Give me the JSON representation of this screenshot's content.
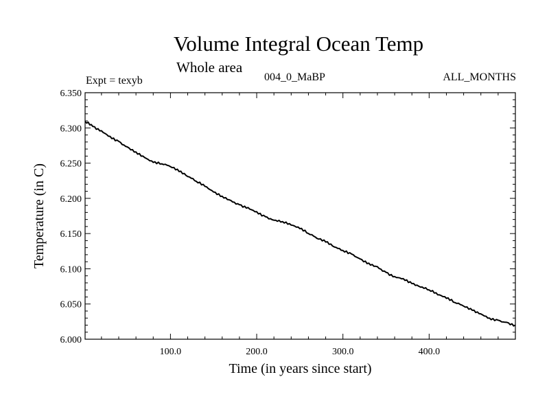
{
  "header": {
    "title": "Volume Integral Ocean Temp",
    "subtitle": "Whole area",
    "left_label": "Expt = texyb",
    "center_label": "004_0_MaBP",
    "right_label": "ALL_MONTHS"
  },
  "chart_data": {
    "type": "line",
    "xlabel": "Time (in years since start)",
    "ylabel": "Temperature (in C)",
    "xlim": [
      1,
      500
    ],
    "ylim": [
      6.0,
      6.35
    ],
    "x_ticks": [
      100,
      200,
      300,
      400
    ],
    "x_tick_labels": [
      "100.0",
      "200.0",
      "300.0",
      "400.0"
    ],
    "y_ticks": [
      6.0,
      6.05,
      6.1,
      6.15,
      6.2,
      6.25,
      6.3,
      6.35
    ],
    "y_tick_labels": [
      "6.000",
      "6.050",
      "6.100",
      "6.150",
      "6.200",
      "6.250",
      "6.300",
      "6.350"
    ],
    "grid": false,
    "series": [
      {
        "x": [
          1,
          10,
          20,
          30,
          40,
          50,
          60,
          70,
          80,
          90,
          100,
          110,
          120,
          130,
          140,
          150,
          160,
          170,
          180,
          190,
          200,
          210,
          220,
          230,
          240,
          250,
          260,
          270,
          280,
          290,
          300,
          310,
          320,
          330,
          340,
          350,
          360,
          370,
          380,
          390,
          400,
          410,
          420,
          430,
          440,
          450,
          460,
          470,
          480,
          490,
          500
        ],
        "values": [
          6.309,
          6.302,
          6.296,
          6.288,
          6.281,
          6.273,
          6.266,
          6.258,
          6.251,
          6.249,
          6.245,
          6.238,
          6.231,
          6.224,
          6.217,
          6.209,
          6.203,
          6.197,
          6.191,
          6.187,
          6.181,
          6.174,
          6.169,
          6.167,
          6.162,
          6.157,
          6.15,
          6.143,
          6.138,
          6.131,
          6.126,
          6.121,
          6.114,
          6.108,
          6.103,
          6.095,
          6.089,
          6.086,
          6.079,
          6.074,
          6.07,
          6.063,
          6.058,
          6.052,
          6.047,
          6.041,
          6.036,
          6.03,
          6.027,
          6.024,
          6.02
        ]
      }
    ]
  }
}
